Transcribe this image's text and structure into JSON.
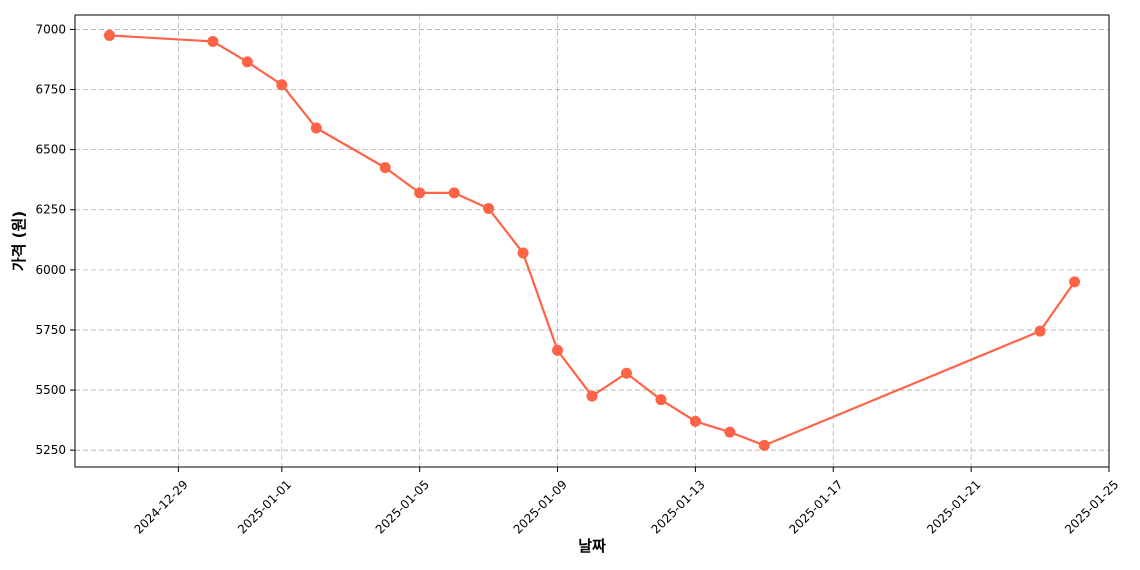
{
  "chart_data": {
    "type": "line",
    "xlabel": "날짜",
    "ylabel": "가격 (원)",
    "x_axis": "date",
    "xlim": [
      "2024-12-26",
      "2025-01-25"
    ],
    "ylim": [
      5180,
      7060
    ],
    "grid": true,
    "color": "#FF6347",
    "x_ticks": [
      "2024-12-29",
      "2025-01-01",
      "2025-01-05",
      "2025-01-09",
      "2025-01-13",
      "2025-01-17",
      "2025-01-21",
      "2025-01-25"
    ],
    "y_ticks": [
      5250,
      5500,
      5750,
      6000,
      6250,
      6500,
      6750,
      7000
    ],
    "series": [
      {
        "x": [
          "2024-12-27",
          "2024-12-30",
          "2024-12-31",
          "2025-01-01",
          "2025-01-02",
          "2025-01-04",
          "2025-01-05",
          "2025-01-06",
          "2025-01-07",
          "2025-01-08",
          "2025-01-09",
          "2025-01-10",
          "2025-01-11",
          "2025-01-12",
          "2025-01-13",
          "2025-01-14",
          "2025-01-15",
          "2025-01-23",
          "2025-01-24"
        ],
        "values": [
          6975,
          6950,
          6865,
          6770,
          6590,
          6425,
          6320,
          6320,
          6255,
          6070,
          5665,
          5475,
          5570,
          5460,
          5370,
          5325,
          5270,
          5745,
          5950
        ]
      }
    ]
  }
}
